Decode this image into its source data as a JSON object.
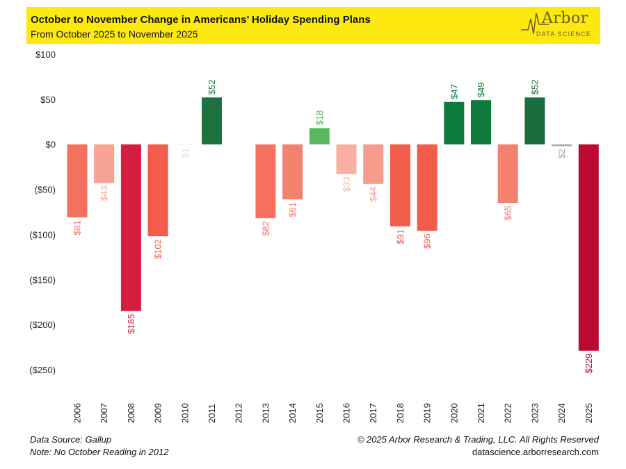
{
  "header": {
    "title": "October to November Change in Americans’ Holiday Spending Plans",
    "subtitle": "From October 2025 to November 2025"
  },
  "logo": {
    "word": "Arbor",
    "sub": "DATA SCIENCE",
    "icon": "arbor-logo-icon"
  },
  "footer": {
    "source": "Data Source: Gallup",
    "note": "Note: No October Reading in 2012",
    "copyright": "© 2025 Arbor Research & Trading, LLC. All Rights Reserved",
    "site": "datascience.arborresearch.com"
  },
  "chart_data": {
    "type": "bar",
    "title": "October to November Change in Americans’ Holiday Spending Plans",
    "subtitle": "From October 2025 to November 2025",
    "categories": [
      "2006",
      "2007",
      "2008",
      "2009",
      "2010",
      "2011",
      "2012",
      "2013",
      "2014",
      "2015",
      "2016",
      "2017",
      "2018",
      "2019",
      "2020",
      "2021",
      "2022",
      "2023",
      "2024",
      "2025"
    ],
    "values": [
      -81,
      -43,
      -185,
      -102,
      -1,
      52,
      null,
      -82,
      -61,
      18,
      -33,
      -44,
      -91,
      -96,
      47,
      49,
      -65,
      52,
      -2,
      -229
    ],
    "labels": [
      "$81",
      "$43",
      "$185",
      "$102",
      "$1",
      "$52",
      "",
      "$82",
      "$61",
      "$18",
      "$33",
      "$44",
      "$91",
      "$96",
      "$47",
      "$49",
      "$65",
      "$52",
      "$2",
      "$229"
    ],
    "colors": [
      "#f4705f",
      "#f7a394",
      "#d41d3f",
      "#f35c4b",
      "#eeeeee",
      "#1e7240",
      "",
      "#f4705f",
      "#f4806e",
      "#5cb85f",
      "#f8b0a3",
      "#f59c8d",
      "#f35c4b",
      "#f35c4b",
      "#0e7a3b",
      "#0e7a3b",
      "#f4806e",
      "#1a6d3d",
      "#aaaaaa",
      "#bb0b33"
    ],
    "yticks": [
      100,
      50,
      0,
      -50,
      -100,
      -150,
      -200,
      -250
    ],
    "ytick_labels": [
      "$100",
      "$50",
      "$0",
      "($50)",
      "($100)",
      "($150)",
      "($200)",
      "($250)"
    ],
    "ylim": [
      -250,
      100
    ],
    "xlabel": "",
    "ylabel": "",
    "grid": false,
    "legend": "none"
  }
}
